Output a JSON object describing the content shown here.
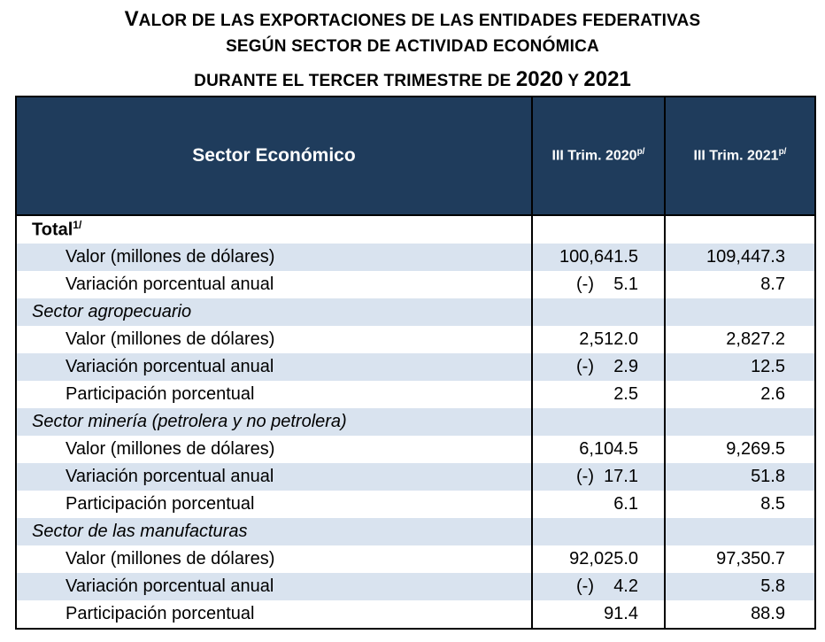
{
  "title": {
    "line1_first": "V",
    "line1_rest": "ALOR DE LAS EXPORTACIONES DE LAS ENTIDADES FEDERATIVAS",
    "line2": "SEGÚN SECTOR DE ACTIVIDAD ECONÓMICA",
    "line3_text": "DURANTE EL TERCER TRIMESTRE DE ",
    "line3_year1": "2020",
    "line3_conj": " Y ",
    "line3_year2": "2021"
  },
  "table": {
    "headers": {
      "sector": "Sector Económico",
      "col1": "III Trim. 2020",
      "col1_sup": "p/",
      "col2": "III Trim. 2021",
      "col2_sup": "p/"
    },
    "rows": [
      {
        "label": "Total",
        "sup": "1/",
        "type": "total",
        "v2020": "",
        "v2021": ""
      },
      {
        "label": "Valor (millones de dólares)",
        "type": "sub",
        "v2020": "100,641.5",
        "v2021": "109,447.3"
      },
      {
        "label": "Variación porcentual anual",
        "type": "sub",
        "neg": "(-)",
        "v2020": "5.1",
        "v2021": "8.7"
      },
      {
        "label": "Sector agropecuario",
        "type": "cat",
        "v2020": "",
        "v2021": ""
      },
      {
        "label": "Valor (millones de dólares)",
        "type": "sub",
        "v2020": "2,512.0",
        "v2021": "2,827.2"
      },
      {
        "label": "Variación porcentual anual",
        "type": "sub",
        "neg": "(-)",
        "v2020": "2.9",
        "v2021": "12.5"
      },
      {
        "label": "Participación porcentual",
        "type": "sub",
        "v2020": "2.5",
        "v2021": "2.6"
      },
      {
        "label": "Sector minería (petrolera y no petrolera)",
        "type": "cat",
        "v2020": "",
        "v2021": ""
      },
      {
        "label": "Valor (millones de dólares)",
        "type": "sub",
        "v2020": "6,104.5",
        "v2021": "9,269.5"
      },
      {
        "label": "Variación porcentual anual",
        "type": "sub",
        "neg": "(-)",
        "v2020": "17.1",
        "v2021": "51.8"
      },
      {
        "label": "Participación porcentual",
        "type": "sub",
        "v2020": "6.1",
        "v2021": "8.5"
      },
      {
        "label": "Sector de las manufacturas",
        "type": "cat",
        "v2020": "",
        "v2021": ""
      },
      {
        "label": "Valor (millones de dólares)",
        "type": "sub",
        "v2020": "92,025.0",
        "v2021": "97,350.7"
      },
      {
        "label": "Variación porcentual anual",
        "type": "sub",
        "neg": "(-)",
        "v2020": "4.2",
        "v2021": "5.8"
      },
      {
        "label": "Participación porcentual",
        "type": "sub",
        "v2020": "91.4",
        "v2021": "88.9"
      }
    ]
  },
  "colors": {
    "header_bg": "#1f3c5c",
    "shade_bg": "#d9e3ef"
  }
}
